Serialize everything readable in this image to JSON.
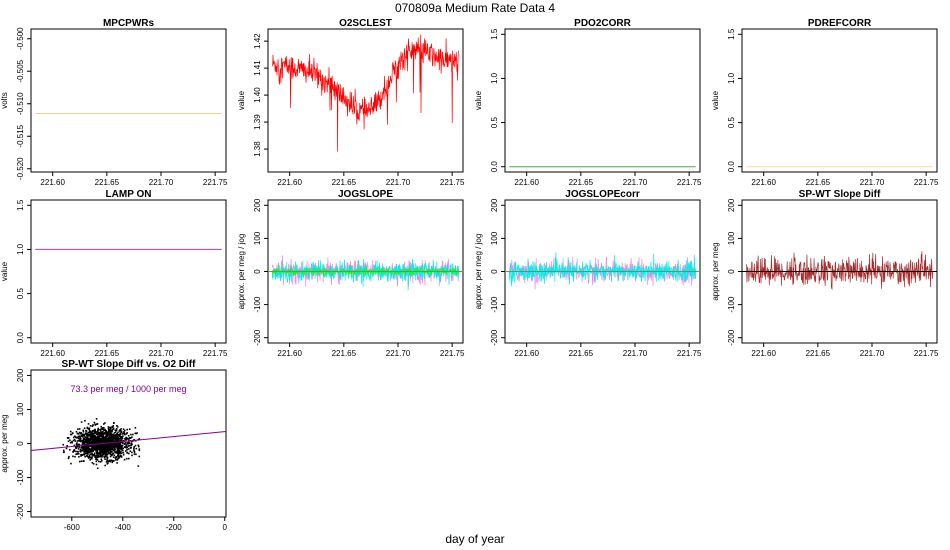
{
  "page_title": "070809a   Medium Rate Data 4",
  "x_axis_label": "day of year",
  "chart_data": [
    {
      "id": "mpcpwrs",
      "type": "line",
      "title": "MPCPWRs",
      "ylabel": "volts",
      "xlim": [
        221.58,
        221.76
      ],
      "ylim": [
        -0.5205,
        -0.4985
      ],
      "xticks": [
        221.6,
        221.65,
        221.7,
        221.75
      ],
      "xtick_labels": [
        "221.60",
        "221.65",
        "221.70",
        "221.75"
      ],
      "yticks": [
        -0.5,
        -0.505,
        -0.51,
        -0.515,
        -0.52
      ],
      "ytick_labels": [
        "-0.500",
        "-0.505",
        "-0.510",
        "-0.515",
        "-0.520"
      ],
      "series": [
        {
          "color": "#ffcc80",
          "kind": "flat",
          "x_range": [
            221.584,
            221.756
          ],
          "value": -0.5115
        }
      ]
    },
    {
      "id": "o2sclest",
      "type": "line",
      "title": "O2SCLEST",
      "ylabel": "value",
      "xlim": [
        221.58,
        221.76
      ],
      "ylim": [
        1.3715,
        1.4245
      ],
      "xticks": [
        221.6,
        221.65,
        221.7,
        221.75
      ],
      "xtick_labels": [
        "221.60",
        "221.65",
        "221.70",
        "221.75"
      ],
      "yticks": [
        1.38,
        1.39,
        1.4,
        1.41,
        1.42
      ],
      "ytick_labels": [
        "1.38",
        "1.39",
        "1.40",
        "1.41",
        "1.42"
      ],
      "series": [
        {
          "color": "#ff0000",
          "kind": "noisy",
          "x_range": [
            221.584,
            221.756
          ],
          "noise": 0.0025,
          "spikes": 0.025,
          "trend": [
            [
              221.584,
              1.4115
            ],
            [
              221.6,
              1.4105
            ],
            [
              221.62,
              1.4085
            ],
            [
              221.64,
              1.403
            ],
            [
              221.66,
              1.395
            ],
            [
              221.67,
              1.3935
            ],
            [
              221.68,
              1.396
            ],
            [
              221.69,
              1.404
            ],
            [
              221.7,
              1.4115
            ],
            [
              221.71,
              1.416
            ],
            [
              221.72,
              1.417
            ],
            [
              221.73,
              1.415
            ],
            [
              221.74,
              1.413
            ],
            [
              221.756,
              1.4125
            ]
          ]
        }
      ]
    },
    {
      "id": "pdo2corr",
      "type": "line",
      "title": "PDO2CORR",
      "ylabel": "value",
      "xlim": [
        221.58,
        221.76
      ],
      "ylim": [
        -0.06,
        1.56
      ],
      "xticks": [
        221.6,
        221.65,
        221.7,
        221.75
      ],
      "xtick_labels": [
        "221.60",
        "221.65",
        "221.70",
        "221.75"
      ],
      "yticks": [
        0.0,
        0.5,
        1.0,
        1.5
      ],
      "ytick_labels": [
        "0.0",
        "0.5",
        "1.0",
        "1.5"
      ],
      "series": [
        {
          "color": "#44aa44",
          "kind": "flat",
          "x_range": [
            221.584,
            221.756
          ],
          "value": 0.0
        }
      ]
    },
    {
      "id": "pdrefcorr",
      "type": "line",
      "title": "PDREFCORR",
      "ylabel": "value",
      "xlim": [
        221.58,
        221.76
      ],
      "ylim": [
        -0.06,
        1.56
      ],
      "xticks": [
        221.6,
        221.65,
        221.7,
        221.75
      ],
      "xtick_labels": [
        "221.60",
        "221.65",
        "221.70",
        "221.75"
      ],
      "yticks": [
        0.0,
        0.5,
        1.0,
        1.5
      ],
      "ytick_labels": [
        "0.0",
        "0.5",
        "1.0",
        "1.5"
      ],
      "series": [
        {
          "color": "#ffdd80",
          "kind": "flat",
          "x_range": [
            221.584,
            221.756
          ],
          "value": 0.0
        }
      ]
    },
    {
      "id": "lamp_on",
      "type": "line",
      "title": "LAMP ON",
      "ylabel": "value",
      "xlim": [
        221.58,
        221.76
      ],
      "ylim": [
        -0.06,
        1.56
      ],
      "xticks": [
        221.6,
        221.65,
        221.7,
        221.75
      ],
      "xtick_labels": [
        "221.60",
        "221.65",
        "221.70",
        "221.75"
      ],
      "yticks": [
        0.0,
        0.5,
        1.0,
        1.5
      ],
      "ytick_labels": [
        "0.0",
        "0.5",
        "1.0",
        "1.5"
      ],
      "series": [
        {
          "color": "#9933ee",
          "kind": "flat",
          "x_range": [
            221.584,
            221.756
          ],
          "value": 1.0
        }
      ]
    },
    {
      "id": "jogslope",
      "type": "line",
      "title": "JOGSLOPE",
      "ylabel": "approx. per meg / jog",
      "xlim": [
        221.58,
        221.76
      ],
      "ylim": [
        -216,
        216
      ],
      "xticks": [
        221.6,
        221.65,
        221.7,
        221.75
      ],
      "xtick_labels": [
        "221.60",
        "221.65",
        "221.70",
        "221.75"
      ],
      "yticks": [
        -200,
        -100,
        0,
        100,
        200
      ],
      "ytick_labels": [
        "-200",
        "-100",
        "0",
        "100",
        "200"
      ],
      "hline": {
        "value": 0,
        "color": "#44aa44"
      },
      "series": [
        {
          "color": "#ee88ee",
          "kind": "noisy",
          "x_range": [
            221.584,
            221.756
          ],
          "value": 0,
          "noise": 16,
          "spikes": 45
        },
        {
          "color": "#00eeee",
          "kind": "noisy",
          "x_range": [
            221.584,
            221.756
          ],
          "value": 0,
          "noise": 15,
          "spikes": 40
        },
        {
          "color": "#22ee22",
          "kind": "noisy",
          "x_range": [
            221.584,
            221.756
          ],
          "value": 0,
          "noise": 6,
          "spikes": 12
        }
      ]
    },
    {
      "id": "jogslopecorr",
      "type": "line",
      "title": "JOGSLOPEcorr",
      "ylabel": "approx. per meg / jog",
      "xlim": [
        221.58,
        221.76
      ],
      "ylim": [
        -216,
        216
      ],
      "xticks": [
        221.6,
        221.65,
        221.7,
        221.75
      ],
      "xtick_labels": [
        "221.60",
        "221.65",
        "221.70",
        "221.75"
      ],
      "yticks": [
        -200,
        -100,
        0,
        100,
        200
      ],
      "ytick_labels": [
        "-200",
        "-100",
        "0",
        "100",
        "200"
      ],
      "hline": {
        "value": 0,
        "color": "#44aa44"
      },
      "series": [
        {
          "color": "#ee88ee",
          "kind": "noisy",
          "x_range": [
            221.584,
            221.756
          ],
          "value": 0,
          "noise": 16,
          "spikes": 45
        },
        {
          "color": "#00eeee",
          "kind": "noisy",
          "x_range": [
            221.584,
            221.756
          ],
          "value": 0,
          "noise": 15,
          "spikes": 40
        }
      ]
    },
    {
      "id": "spwt_slope_diff",
      "type": "line",
      "title": "SP-WT Slope Diff",
      "ylabel": "approx. per meg",
      "xlim": [
        221.58,
        221.76
      ],
      "ylim": [
        -216,
        216
      ],
      "xticks": [
        221.6,
        221.65,
        221.7,
        221.75
      ],
      "xtick_labels": [
        "221.60",
        "221.65",
        "221.70",
        "221.75"
      ],
      "yticks": [
        -200,
        -100,
        0,
        100,
        200
      ],
      "ytick_labels": [
        "-200",
        "-100",
        "0",
        "100",
        "200"
      ],
      "hline": {
        "value": 0,
        "color": "#000000"
      },
      "series": [
        {
          "color": "#a52a2a",
          "kind": "noisy",
          "x_range": [
            221.584,
            221.756
          ],
          "value": 0,
          "noise": 22,
          "spikes": 45
        }
      ]
    },
    {
      "id": "spwt_vs_o2",
      "type": "scatter",
      "title": "SP-WT Slope Diff vs. O2 Diff",
      "ylabel": "approx. per meg",
      "xlim": [
        -760,
        5
      ],
      "ylim": [
        -216,
        216
      ],
      "xticks": [
        -600,
        -400,
        -200,
        0
      ],
      "xtick_labels": [
        "-600",
        "-400",
        "-200",
        "0"
      ],
      "yticks": [
        -200,
        -100,
        0,
        100,
        200
      ],
      "ytick_labels": [
        "-200",
        "-100",
        "0",
        "100",
        "200"
      ],
      "annotation": {
        "text": "73.3 per meg / 1000 per meg",
        "color": "#8b008b"
      },
      "fit_line": {
        "slope": 0.0733,
        "intercept": 35,
        "color": "#8b008b"
      },
      "cloud": {
        "color": "#000000",
        "x_center": -480,
        "x_spread": 55,
        "y_center": 0,
        "y_spread": 22,
        "x_min": -710,
        "x_max": -335
      }
    }
  ]
}
